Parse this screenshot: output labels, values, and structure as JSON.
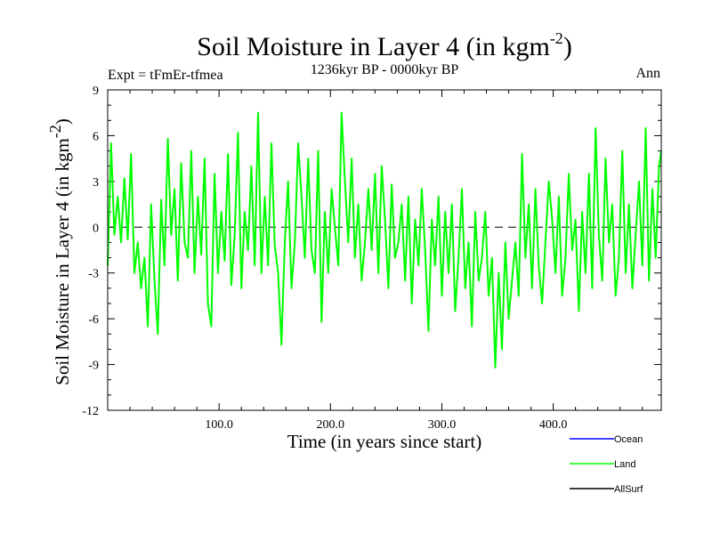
{
  "chart_data": {
    "type": "line",
    "title": {
      "main": "Soil Moisture in Layer 4 (in kgm",
      "sup": "-2",
      "close": ")"
    },
    "subtitle_left": "Expt = tFmEr-tfmea",
    "subtitle_center": "1236kyr BP - 0000kyr BP",
    "subtitle_right": "Ann",
    "xlabel": "Time (in years since start)",
    "ylabel": {
      "main": "Soil Moisture in Layer 4 (in kgm",
      "sup": "-2",
      "close": ")"
    },
    "xlim": [
      0,
      497
    ],
    "ylim": [
      -12,
      9
    ],
    "xticks": [
      100,
      200,
      300,
      400
    ],
    "xtick_labels": [
      "100.0",
      "200.0",
      "300.0",
      "400.0"
    ],
    "yticks": [
      9,
      6,
      3,
      0,
      -3,
      -6,
      -9,
      -12
    ],
    "ytick_labels": [
      "9",
      "6",
      "3",
      "0",
      "-3",
      "-6",
      "-9",
      "-12"
    ],
    "zero_line": 0,
    "legend": [
      {
        "name": "Ocean",
        "color": "#0000ff"
      },
      {
        "name": "Land",
        "color": "#00ff00"
      },
      {
        "name": "AllSurf",
        "color": "#000000"
      }
    ],
    "series": [
      {
        "name": "Land",
        "color": "#00ff00",
        "x": [
          0,
          3,
          6,
          9,
          12,
          15,
          18,
          21,
          24,
          27,
          30,
          33,
          36,
          39,
          42,
          45,
          48,
          51,
          54,
          57,
          60,
          63,
          66,
          69,
          72,
          75,
          78,
          81,
          84,
          87,
          90,
          93,
          96,
          99,
          102,
          105,
          108,
          111,
          114,
          117,
          120,
          123,
          126,
          129,
          132,
          135,
          138,
          141,
          144,
          147,
          150,
          153,
          156,
          159,
          162,
          165,
          168,
          171,
          174,
          177,
          180,
          183,
          186,
          189,
          192,
          195,
          198,
          201,
          204,
          207,
          210,
          213,
          216,
          219,
          222,
          225,
          228,
          231,
          234,
          237,
          240,
          243,
          246,
          249,
          252,
          255,
          258,
          261,
          264,
          267,
          270,
          273,
          276,
          279,
          282,
          285,
          288,
          291,
          294,
          297,
          300,
          303,
          306,
          309,
          312,
          315,
          318,
          321,
          324,
          327,
          330,
          333,
          336,
          339,
          342,
          345,
          348,
          351,
          354,
          357,
          360,
          363,
          366,
          369,
          372,
          375,
          378,
          381,
          384,
          387,
          390,
          393,
          396,
          399,
          402,
          405,
          408,
          411,
          414,
          417,
          420,
          423,
          426,
          429,
          432,
          435,
          438,
          441,
          444,
          447,
          450,
          453,
          456,
          459,
          462,
          465,
          468,
          471,
          474,
          477,
          480,
          483,
          486,
          489,
          492,
          495,
          497
        ],
        "y": [
          -2.5,
          5.5,
          -0.5,
          2.0,
          -1.0,
          3.2,
          -0.8,
          4.8,
          -3.0,
          -1.0,
          -4.0,
          -2.0,
          -6.5,
          1.5,
          -3.5,
          -7.0,
          1.8,
          -2.5,
          5.8,
          -0.5,
          2.5,
          -3.5,
          4.2,
          -1.0,
          -2.0,
          5.0,
          -3.0,
          2.0,
          -1.8,
          4.5,
          -5.0,
          -6.5,
          3.5,
          -3.0,
          1.0,
          -2.2,
          4.8,
          -3.8,
          -0.5,
          6.2,
          -4.0,
          1.0,
          -1.5,
          4.0,
          -2.5,
          7.5,
          -3.0,
          2.0,
          -2.5,
          5.5,
          -1.2,
          -3.0,
          -7.7,
          -1.0,
          3.0,
          -4.0,
          -1.0,
          5.5,
          2.0,
          -2.0,
          4.5,
          -1.5,
          -3.0,
          5.0,
          -6.2,
          1.0,
          -3.0,
          2.5,
          0.0,
          -2.5,
          7.5,
          3.0,
          -1.0,
          4.5,
          -2.0,
          1.5,
          -3.5,
          -1.0,
          2.5,
          -1.5,
          3.5,
          -3.0,
          4.0,
          0.5,
          -4.0,
          2.8,
          -2.0,
          -1.0,
          1.5,
          -3.5,
          2.0,
          -5.0,
          0.5,
          -2.5,
          2.5,
          -1.5,
          -6.8,
          0.5,
          -2.5,
          2.0,
          -4.5,
          1.0,
          -3.0,
          1.5,
          -5.5,
          -2.0,
          2.5,
          -4.0,
          -1.0,
          -6.5,
          1.0,
          -3.5,
          -2.0,
          1.0,
          -4.5,
          -2.0,
          -9.2,
          -3.0,
          -8.0,
          -1.0,
          -6.0,
          -3.5,
          -1.0,
          -4.5,
          4.8,
          -2.0,
          1.5,
          -4.0,
          2.5,
          -2.5,
          -5.0,
          -1.0,
          3.0,
          0.5,
          -3.0,
          2.0,
          -4.5,
          -2.0,
          3.5,
          -1.5,
          0.5,
          -5.5,
          1.0,
          -3.0,
          3.5,
          -4.0,
          6.5,
          -0.5,
          -3.5,
          4.5,
          -1.0,
          1.5,
          -4.5,
          -2.0,
          5.0,
          -3.0,
          1.5,
          -4.0,
          -0.5,
          3.0,
          -2.5,
          6.5,
          -3.5,
          2.5,
          -2.0,
          4.0,
          5.0
        ]
      }
    ]
  }
}
